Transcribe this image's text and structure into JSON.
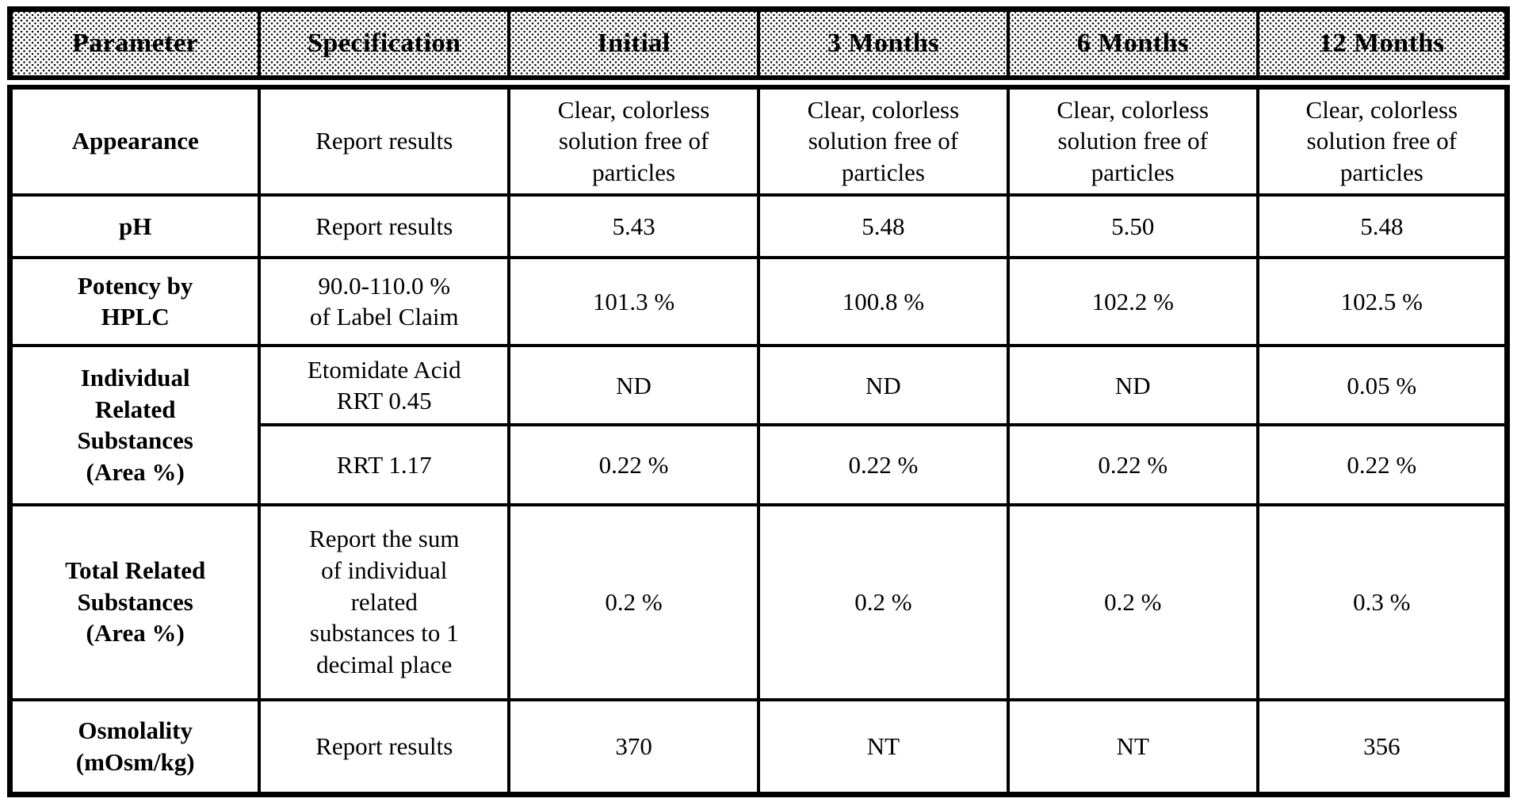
{
  "table": {
    "columns": [
      "Parameter",
      "Specification",
      "Initial",
      "3 Months",
      "6 Months",
      "12 Months"
    ],
    "rows": {
      "appearance": {
        "parameter": "Appearance",
        "specification": "Report results",
        "values": [
          "Clear, colorless solution free of particles",
          "Clear, colorless solution free of particles",
          "Clear, colorless solution free of particles",
          "Clear, colorless solution free of particles"
        ]
      },
      "ph": {
        "parameter": "pH",
        "specification": "Report results",
        "values": [
          "5.43",
          "5.48",
          "5.50",
          "5.48"
        ]
      },
      "potency": {
        "parameter": [
          "Potency by",
          "HPLC"
        ],
        "specification": [
          "90.0-110.0 %",
          "of Label Claim"
        ],
        "values": [
          "101.3 %",
          "100.8 %",
          "102.2 %",
          "102.5 %"
        ]
      },
      "individual_related_substances": {
        "parameter": [
          "Individual",
          "Related",
          "Substances",
          "(Area %)"
        ],
        "subrows": {
          "etomidate_acid": {
            "specification": [
              "Etomidate Acid",
              "RRT 0.45"
            ],
            "values": [
              "ND",
              "ND",
              "ND",
              "0.05 %"
            ]
          },
          "rrt_1_17": {
            "specification": "RRT 1.17",
            "values": [
              "0.22 %",
              "0.22 %",
              "0.22 %",
              "0.22 %"
            ]
          }
        }
      },
      "total_related_substances": {
        "parameter": [
          "Total Related",
          "Substances",
          "(Area %)"
        ],
        "specification": [
          "Report the sum",
          "of individual",
          "related",
          "substances to 1",
          "decimal place"
        ],
        "values": [
          "0.2 %",
          "0.2 %",
          "0.2 %",
          "0.3 %"
        ]
      },
      "osmolality": {
        "parameter": [
          "Osmolality",
          "(mOsm/kg)"
        ],
        "specification": "Report results",
        "values": [
          "370",
          "NT",
          "NT",
          "356"
        ]
      }
    }
  }
}
